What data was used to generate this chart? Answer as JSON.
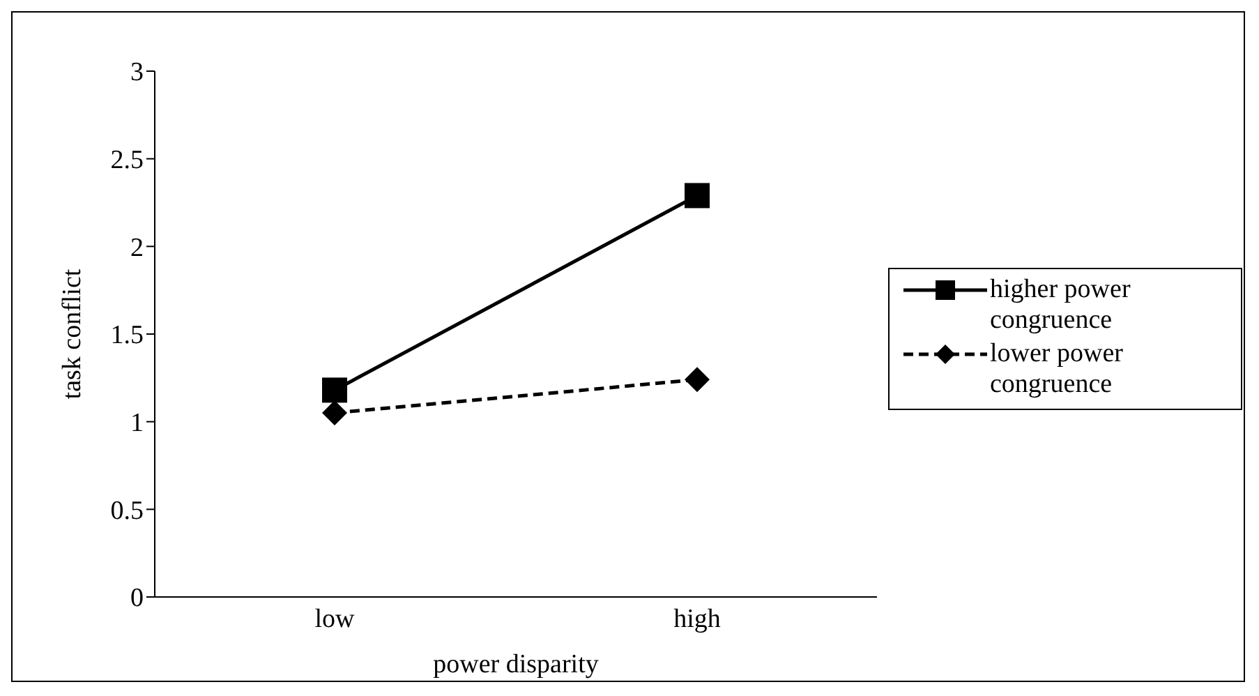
{
  "chart_data": {
    "type": "line",
    "xlabel": "power disparity",
    "ylabel": "task conflict",
    "categories": [
      "low",
      "high"
    ],
    "series": [
      {
        "name": "higher power congruence",
        "color": "#000000",
        "values": [
          1.18,
          2.29
        ],
        "marker": "square",
        "line_style": "solid"
      },
      {
        "name": "lower power congruence",
        "color": "#000000",
        "values": [
          1.05,
          1.24
        ],
        "marker": "diamond",
        "line_style": "dashed"
      }
    ],
    "ylim": [
      0,
      3
    ],
    "yticks": [
      0,
      0.5,
      1,
      1.5,
      2,
      2.5,
      3
    ],
    "grid": false,
    "legend": "right"
  }
}
